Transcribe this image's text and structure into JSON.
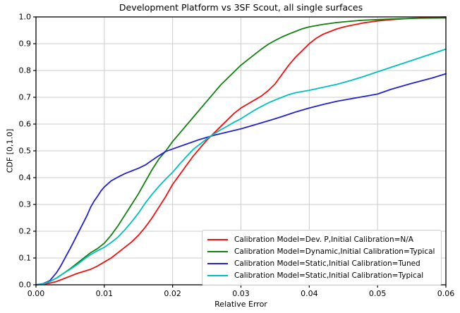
{
  "chart_data": {
    "type": "line",
    "title": "Development Platform vs 3SF Scout, all single surfaces",
    "xlabel": "Relative Error",
    "ylabel": "CDF [0,1.0]",
    "xlim": [
      0,
      0.06
    ],
    "ylim": [
      0,
      1.0
    ],
    "xticks": [
      0,
      0.01,
      0.02,
      0.03,
      0.04,
      0.05,
      0.06
    ],
    "xtick_labels": [
      "0.00",
      "0.01",
      "0.02",
      "0.03",
      "0.04",
      "0.05",
      "0.06"
    ],
    "yticks": [
      0,
      0.1,
      0.2,
      0.3,
      0.4,
      0.5,
      0.6,
      0.7,
      0.8,
      0.9,
      1.0
    ],
    "ytick_labels": [
      "0.0",
      "0.1",
      "0.2",
      "0.3",
      "0.4",
      "0.5",
      "0.6",
      "0.7",
      "0.8",
      "0.9",
      "1.0"
    ],
    "grid": true,
    "grid_color": "#cccccc",
    "legend_position": "lower right",
    "series": [
      {
        "name": "Calibration Model=Dev. P,Initial Calibration=N/A",
        "color": "#ee1111",
        "points": [
          [
            0,
            0
          ],
          [
            0.001,
            0.002
          ],
          [
            0.002,
            0.006
          ],
          [
            0.003,
            0.012
          ],
          [
            0.004,
            0.022
          ],
          [
            0.005,
            0.032
          ],
          [
            0.006,
            0.042
          ],
          [
            0.007,
            0.05
          ],
          [
            0.008,
            0.058
          ],
          [
            0.009,
            0.07
          ],
          [
            0.01,
            0.085
          ],
          [
            0.011,
            0.1
          ],
          [
            0.012,
            0.12
          ],
          [
            0.013,
            0.14
          ],
          [
            0.014,
            0.16
          ],
          [
            0.015,
            0.185
          ],
          [
            0.016,
            0.215
          ],
          [
            0.017,
            0.25
          ],
          [
            0.018,
            0.29
          ],
          [
            0.019,
            0.33
          ],
          [
            0.02,
            0.375
          ],
          [
            0.021,
            0.41
          ],
          [
            0.022,
            0.445
          ],
          [
            0.023,
            0.48
          ],
          [
            0.024,
            0.51
          ],
          [
            0.025,
            0.54
          ],
          [
            0.026,
            0.565
          ],
          [
            0.027,
            0.59
          ],
          [
            0.028,
            0.615
          ],
          [
            0.029,
            0.64
          ],
          [
            0.03,
            0.66
          ],
          [
            0.031,
            0.675
          ],
          [
            0.032,
            0.69
          ],
          [
            0.033,
            0.705
          ],
          [
            0.034,
            0.725
          ],
          [
            0.035,
            0.75
          ],
          [
            0.036,
            0.785
          ],
          [
            0.037,
            0.82
          ],
          [
            0.038,
            0.85
          ],
          [
            0.039,
            0.875
          ],
          [
            0.04,
            0.9
          ],
          [
            0.041,
            0.92
          ],
          [
            0.042,
            0.935
          ],
          [
            0.043,
            0.945
          ],
          [
            0.044,
            0.955
          ],
          [
            0.045,
            0.962
          ],
          [
            0.046,
            0.968
          ],
          [
            0.048,
            0.978
          ],
          [
            0.05,
            0.985
          ],
          [
            0.052,
            0.99
          ],
          [
            0.055,
            0.995
          ],
          [
            0.058,
            0.998
          ],
          [
            0.06,
            1.0
          ]
        ]
      },
      {
        "name": "Calibration Model=Dynamic,Initial Calibration=Typical",
        "color": "#118011",
        "points": [
          [
            0,
            0
          ],
          [
            0.001,
            0.003
          ],
          [
            0.002,
            0.012
          ],
          [
            0.003,
            0.025
          ],
          [
            0.004,
            0.042
          ],
          [
            0.005,
            0.06
          ],
          [
            0.006,
            0.08
          ],
          [
            0.007,
            0.1
          ],
          [
            0.008,
            0.12
          ],
          [
            0.009,
            0.135
          ],
          [
            0.01,
            0.155
          ],
          [
            0.011,
            0.185
          ],
          [
            0.012,
            0.22
          ],
          [
            0.013,
            0.26
          ],
          [
            0.014,
            0.3
          ],
          [
            0.015,
            0.34
          ],
          [
            0.016,
            0.385
          ],
          [
            0.017,
            0.43
          ],
          [
            0.018,
            0.47
          ],
          [
            0.019,
            0.5
          ],
          [
            0.02,
            0.535
          ],
          [
            0.021,
            0.565
          ],
          [
            0.022,
            0.595
          ],
          [
            0.023,
            0.625
          ],
          [
            0.024,
            0.655
          ],
          [
            0.025,
            0.685
          ],
          [
            0.026,
            0.715
          ],
          [
            0.027,
            0.745
          ],
          [
            0.028,
            0.77
          ],
          [
            0.029,
            0.795
          ],
          [
            0.03,
            0.82
          ],
          [
            0.031,
            0.84
          ],
          [
            0.032,
            0.86
          ],
          [
            0.033,
            0.88
          ],
          [
            0.034,
            0.898
          ],
          [
            0.035,
            0.912
          ],
          [
            0.036,
            0.925
          ],
          [
            0.037,
            0.936
          ],
          [
            0.038,
            0.946
          ],
          [
            0.039,
            0.956
          ],
          [
            0.04,
            0.963
          ],
          [
            0.042,
            0.972
          ],
          [
            0.044,
            0.979
          ],
          [
            0.046,
            0.984
          ],
          [
            0.048,
            0.988
          ],
          [
            0.05,
            0.99
          ],
          [
            0.053,
            0.993
          ],
          [
            0.056,
            0.995
          ],
          [
            0.06,
            0.996
          ]
        ]
      },
      {
        "name": "Calibration Model=Static,Initial Calibration=Tuned",
        "color": "#2222cc",
        "points": [
          [
            0,
            0
          ],
          [
            0.001,
            0.004
          ],
          [
            0.002,
            0.015
          ],
          [
            0.003,
            0.045
          ],
          [
            0.0035,
            0.065
          ],
          [
            0.004,
            0.088
          ],
          [
            0.0045,
            0.112
          ],
          [
            0.005,
            0.135
          ],
          [
            0.0055,
            0.16
          ],
          [
            0.006,
            0.185
          ],
          [
            0.0065,
            0.21
          ],
          [
            0.007,
            0.235
          ],
          [
            0.0075,
            0.26
          ],
          [
            0.008,
            0.29
          ],
          [
            0.0085,
            0.312
          ],
          [
            0.009,
            0.33
          ],
          [
            0.0095,
            0.35
          ],
          [
            0.01,
            0.365
          ],
          [
            0.011,
            0.388
          ],
          [
            0.012,
            0.402
          ],
          [
            0.013,
            0.415
          ],
          [
            0.014,
            0.425
          ],
          [
            0.015,
            0.435
          ],
          [
            0.016,
            0.447
          ],
          [
            0.017,
            0.465
          ],
          [
            0.018,
            0.482
          ],
          [
            0.019,
            0.498
          ],
          [
            0.02,
            0.507
          ],
          [
            0.022,
            0.525
          ],
          [
            0.024,
            0.543
          ],
          [
            0.026,
            0.558
          ],
          [
            0.028,
            0.57
          ],
          [
            0.03,
            0.582
          ],
          [
            0.032,
            0.597
          ],
          [
            0.034,
            0.612
          ],
          [
            0.036,
            0.628
          ],
          [
            0.038,
            0.645
          ],
          [
            0.04,
            0.66
          ],
          [
            0.042,
            0.673
          ],
          [
            0.044,
            0.685
          ],
          [
            0.046,
            0.694
          ],
          [
            0.048,
            0.703
          ],
          [
            0.05,
            0.712
          ],
          [
            0.052,
            0.73
          ],
          [
            0.055,
            0.752
          ],
          [
            0.058,
            0.772
          ],
          [
            0.06,
            0.788
          ]
        ]
      },
      {
        "name": "Calibration Model=Static,Initial Calibration=Typical",
        "color": "#00bfbf",
        "points": [
          [
            0,
            0
          ],
          [
            0.001,
            0.003
          ],
          [
            0.002,
            0.012
          ],
          [
            0.003,
            0.025
          ],
          [
            0.004,
            0.042
          ],
          [
            0.005,
            0.058
          ],
          [
            0.006,
            0.075
          ],
          [
            0.007,
            0.095
          ],
          [
            0.008,
            0.113
          ],
          [
            0.009,
            0.127
          ],
          [
            0.01,
            0.14
          ],
          [
            0.011,
            0.158
          ],
          [
            0.012,
            0.178
          ],
          [
            0.013,
            0.205
          ],
          [
            0.014,
            0.235
          ],
          [
            0.015,
            0.268
          ],
          [
            0.016,
            0.305
          ],
          [
            0.017,
            0.338
          ],
          [
            0.018,
            0.368
          ],
          [
            0.019,
            0.395
          ],
          [
            0.02,
            0.42
          ],
          [
            0.021,
            0.45
          ],
          [
            0.022,
            0.478
          ],
          [
            0.023,
            0.505
          ],
          [
            0.024,
            0.525
          ],
          [
            0.025,
            0.545
          ],
          [
            0.026,
            0.562
          ],
          [
            0.027,
            0.578
          ],
          [
            0.028,
            0.592
          ],
          [
            0.029,
            0.607
          ],
          [
            0.03,
            0.62
          ],
          [
            0.031,
            0.636
          ],
          [
            0.032,
            0.652
          ],
          [
            0.033,
            0.666
          ],
          [
            0.034,
            0.679
          ],
          [
            0.035,
            0.69
          ],
          [
            0.036,
            0.7
          ],
          [
            0.037,
            0.71
          ],
          [
            0.038,
            0.717
          ],
          [
            0.04,
            0.726
          ],
          [
            0.042,
            0.737
          ],
          [
            0.044,
            0.748
          ],
          [
            0.046,
            0.762
          ],
          [
            0.048,
            0.778
          ],
          [
            0.05,
            0.795
          ],
          [
            0.052,
            0.812
          ],
          [
            0.054,
            0.829
          ],
          [
            0.056,
            0.846
          ],
          [
            0.058,
            0.863
          ],
          [
            0.06,
            0.88
          ]
        ]
      }
    ]
  }
}
